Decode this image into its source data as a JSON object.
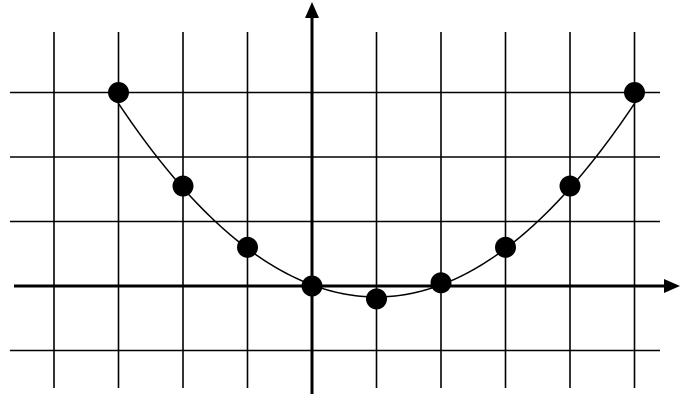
{
  "chart_data": {
    "type": "scatter",
    "title": "",
    "xlabel": "",
    "ylabel": "",
    "grid": true,
    "xlim": [
      -4.5,
      5.5
    ],
    "ylim": [
      -1,
      3
    ],
    "x_gridlines": [
      -4,
      -3,
      -2,
      -1,
      1,
      2,
      3,
      4,
      5
    ],
    "y_gridlines": [
      -1,
      1,
      2,
      3
    ],
    "series": [
      {
        "points": [
          {
            "x": -3,
            "y": 3
          },
          {
            "x": -2,
            "y": 1.55
          },
          {
            "x": -1,
            "y": 0.6
          },
          {
            "x": 0,
            "y": 0
          },
          {
            "x": 1,
            "y": -0.2
          },
          {
            "x": 2,
            "y": 0.05
          },
          {
            "x": 3,
            "y": 0.6
          },
          {
            "x": 4,
            "y": 1.55
          },
          {
            "x": 5,
            "y": 3
          }
        ]
      }
    ],
    "curve": {
      "type": "parabola",
      "a": 0.1875,
      "h": 1,
      "k": -0.17,
      "x_range": [
        -3.05,
        5.12
      ]
    },
    "colors": {
      "line": "#000000",
      "point": "#000000",
      "background": "#ffffff"
    }
  }
}
